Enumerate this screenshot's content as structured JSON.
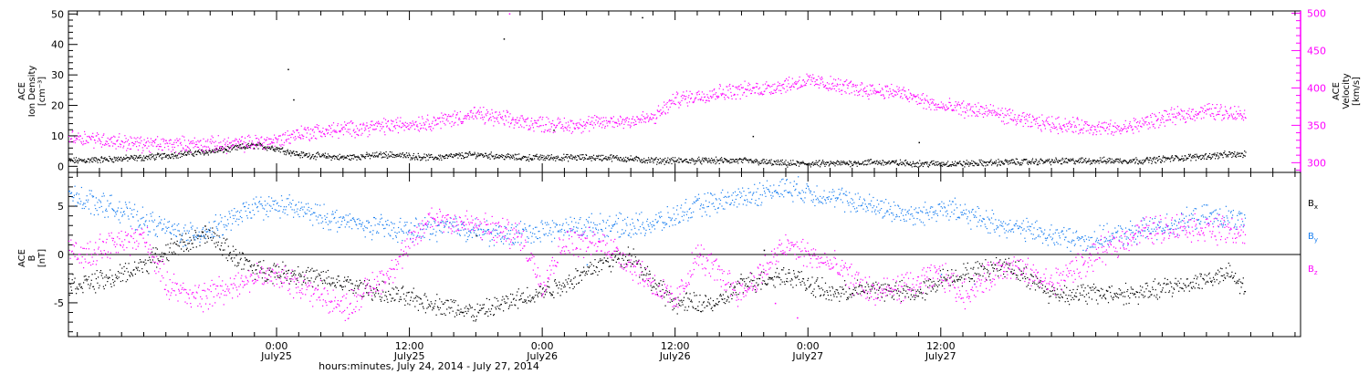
{
  "chart_data": [
    {
      "type": "scatter",
      "panel": "top",
      "left_axis": {
        "label_lines": [
          "ACE",
          "Ion Density",
          "[cm⁻³]"
        ],
        "range": [
          -2,
          51
        ],
        "ticks": [
          0,
          10,
          20,
          30,
          40,
          50
        ]
      },
      "right_axis": {
        "label_lines": [
          "ACE",
          "Velocity",
          "[km/s]"
        ],
        "range": [
          287,
          503
        ],
        "ticks": [
          300,
          350,
          400,
          450,
          500
        ],
        "color": "#ff00ff"
      },
      "series": [
        {
          "name": "Ion Density",
          "axis": "left",
          "color": "#000000",
          "anchors": [
            [
              -18,
              2
            ],
            [
              -12,
              3
            ],
            [
              -6,
              5
            ],
            [
              -2,
              7
            ],
            [
              0,
              6
            ],
            [
              2,
              4
            ],
            [
              6,
              3
            ],
            [
              10,
              4
            ],
            [
              14,
              3
            ],
            [
              18,
              4
            ],
            [
              22,
              3
            ],
            [
              26,
              3
            ],
            [
              30,
              3
            ],
            [
              34,
              2
            ],
            [
              38,
              2
            ],
            [
              42,
              2
            ],
            [
              46,
              1
            ],
            [
              50,
              1
            ],
            [
              54,
              1.5
            ],
            [
              58,
              1
            ],
            [
              62,
              1
            ],
            [
              66,
              1.5
            ],
            [
              70,
              1.8
            ],
            [
              74,
              2
            ],
            [
              78,
              2
            ],
            [
              82,
              3
            ],
            [
              86,
              4
            ]
          ],
          "outliers": [
            [
              1.5,
              22
            ],
            [
              1.0,
              32
            ],
            [
              20.5,
              42
            ],
            [
              33,
              49
            ],
            [
              25,
              12
            ],
            [
              43,
              10
            ],
            [
              58,
              8
            ]
          ]
        },
        {
          "name": "Velocity",
          "axis": "right",
          "color": "#ff00ff",
          "anchors": [
            [
              -18,
              335
            ],
            [
              -15,
              330
            ],
            [
              -12,
              325
            ],
            [
              -8,
              325
            ],
            [
              -4,
              325
            ],
            [
              0,
              330
            ],
            [
              2,
              340
            ],
            [
              6,
              345
            ],
            [
              10,
              350
            ],
            [
              14,
              355
            ],
            [
              18,
              365
            ],
            [
              22,
              355
            ],
            [
              26,
              350
            ],
            [
              30,
              355
            ],
            [
              34,
              360
            ],
            [
              36,
              385
            ],
            [
              40,
              395
            ],
            [
              44,
              400
            ],
            [
              48,
              410
            ],
            [
              52,
              400
            ],
            [
              56,
              395
            ],
            [
              60,
              375
            ],
            [
              64,
              370
            ],
            [
              68,
              355
            ],
            [
              72,
              350
            ],
            [
              76,
              345
            ],
            [
              80,
              360
            ],
            [
              84,
              370
            ],
            [
              88,
              365
            ],
            [
              92,
              360
            ]
          ],
          "outliers": [
            [
              21,
              500
            ]
          ]
        }
      ]
    },
    {
      "type": "scatter",
      "panel": "bottom",
      "axis": {
        "label_lines": [
          "ACE",
          "B",
          "[nT]"
        ],
        "range": [
          -8.5,
          8.5
        ],
        "ticks": [
          -5,
          0,
          5
        ]
      },
      "zero_line": true,
      "series": [
        {
          "name": "B",
          "sub": "x",
          "color": "#000000",
          "anchors": [
            [
              -18,
              -3
            ],
            [
              -15,
              -2.5
            ],
            [
              -12,
              -1
            ],
            [
              -9,
              1
            ],
            [
              -6,
              2
            ],
            [
              -4,
              0
            ],
            [
              -2,
              -1.5
            ],
            [
              2,
              -2
            ],
            [
              6,
              -3
            ],
            [
              10,
              -4
            ],
            [
              14,
              -5
            ],
            [
              18,
              -6
            ],
            [
              22,
              -4.5
            ],
            [
              26,
              -3
            ],
            [
              29,
              -1
            ],
            [
              32,
              0
            ],
            [
              34,
              -3
            ],
            [
              36,
              -5
            ],
            [
              40,
              -5
            ],
            [
              42,
              -3
            ],
            [
              46,
              -2
            ],
            [
              50,
              -4
            ],
            [
              54,
              -3.5
            ],
            [
              58,
              -4
            ],
            [
              60,
              -2.5
            ],
            [
              62,
              -2
            ],
            [
              66,
              -1
            ],
            [
              70,
              -4
            ],
            [
              74,
              -4
            ],
            [
              78,
              -4
            ],
            [
              82,
              -3
            ],
            [
              86,
              -2
            ],
            [
              88,
              -4
            ]
          ],
          "outliers": [
            [
              -6.5,
              3
            ],
            [
              18,
              2
            ],
            [
              44,
              0.5
            ]
          ]
        },
        {
          "name": "B",
          "sub": "y",
          "color": "#1a7ff0",
          "anchors": [
            [
              -18,
              6
            ],
            [
              -15,
              5
            ],
            [
              -12,
              3.5
            ],
            [
              -8,
              2
            ],
            [
              -5,
              3
            ],
            [
              -2,
              5
            ],
            [
              1,
              5
            ],
            [
              4,
              4
            ],
            [
              8,
              3
            ],
            [
              12,
              2.5
            ],
            [
              16,
              3
            ],
            [
              20,
              2
            ],
            [
              24,
              2.5
            ],
            [
              28,
              3
            ],
            [
              32,
              3
            ],
            [
              35,
              3.5
            ],
            [
              38,
              5
            ],
            [
              42,
              6
            ],
            [
              46,
              7
            ],
            [
              50,
              6
            ],
            [
              54,
              5
            ],
            [
              58,
              4
            ],
            [
              60,
              5
            ],
            [
              64,
              3.5
            ],
            [
              66,
              3
            ],
            [
              70,
              2
            ],
            [
              73,
              1.5
            ],
            [
              76,
              2
            ],
            [
              80,
              3
            ],
            [
              84,
              4
            ],
            [
              88,
              3.5
            ]
          ],
          "outliers": [
            [
              28,
              -1
            ],
            [
              60,
              -2
            ],
            [
              63,
              -3
            ]
          ]
        },
        {
          "name": "B",
          "sub": "z",
          "color": "#ff00ff",
          "anchors": [
            [
              -18,
              0
            ],
            [
              -15,
              1
            ],
            [
              -12,
              2
            ],
            [
              -10,
              -3
            ],
            [
              -7,
              -4.5
            ],
            [
              -4,
              -3
            ],
            [
              -1,
              -2
            ],
            [
              2,
              -3
            ],
            [
              6,
              -5.5
            ],
            [
              10,
              -2
            ],
            [
              14,
              4
            ],
            [
              18,
              3
            ],
            [
              22,
              2
            ],
            [
              24,
              -3
            ],
            [
              26,
              1.5
            ],
            [
              30,
              1
            ],
            [
              34,
              -3
            ],
            [
              36,
              -5
            ],
            [
              38,
              0
            ],
            [
              42,
              -4
            ],
            [
              46,
              1
            ],
            [
              50,
              -1
            ],
            [
              54,
              -4
            ],
            [
              58,
              -3
            ],
            [
              60,
              -2
            ],
            [
              62,
              -4
            ],
            [
              66,
              -1
            ],
            [
              70,
              -3
            ],
            [
              74,
              0
            ],
            [
              78,
              2.5
            ],
            [
              82,
              3
            ],
            [
              86,
              2.5
            ],
            [
              88,
              2
            ]
          ],
          "outliers": [
            [
              45,
              -5
            ],
            [
              47,
              -6.5
            ]
          ]
        }
      ]
    }
  ],
  "x_axis": {
    "range": [
      -18.8,
      92.5
    ],
    "data_end": 87.5,
    "major_ticks": [
      {
        "hours": 0,
        "time": "0:00",
        "date": "July25"
      },
      {
        "hours": 12,
        "time": "12:00",
        "date": "July25"
      },
      {
        "hours": 24,
        "time": "0:00",
        "date": "July26"
      },
      {
        "hours": 36,
        "time": "12:00",
        "date": "July26"
      },
      {
        "hours": 48,
        "time": "0:00",
        "date": "July27"
      },
      {
        "hours": 60,
        "time": "12:00",
        "date": "July27"
      }
    ],
    "minor_step_hours": 2,
    "label": "hours:minutes, July 24, 2014 - July 27, 2014"
  }
}
